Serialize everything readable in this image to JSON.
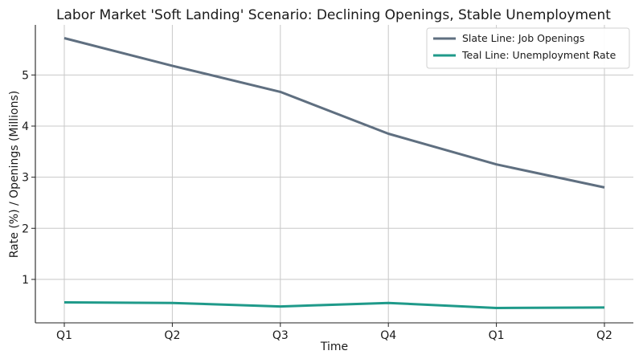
{
  "chart_data": {
    "type": "line",
    "title": "Labor Market 'Soft Landing' Scenario: Declining Openings, Stable Unemployment",
    "xlabel": "Time",
    "ylabel": "Rate (%) / Openings (Millions)",
    "categories": [
      "Q1",
      "Q2",
      "Q3",
      "Q4",
      "Q1",
      "Q2"
    ],
    "yticks": [
      1,
      2,
      3,
      4,
      5
    ],
    "ylim": [
      0.15,
      5.98
    ],
    "grid": true,
    "legend_position": "top-right",
    "series": [
      {
        "name": "Slate Line: Job Openings",
        "color": "#5f6f80",
        "values": [
          5.72,
          5.18,
          4.67,
          3.85,
          3.25,
          2.8
        ]
      },
      {
        "name": "Teal Line: Unemployment Rate",
        "color": "#1f9a8a",
        "values": [
          0.55,
          0.54,
          0.47,
          0.54,
          0.44,
          0.45
        ]
      }
    ]
  }
}
